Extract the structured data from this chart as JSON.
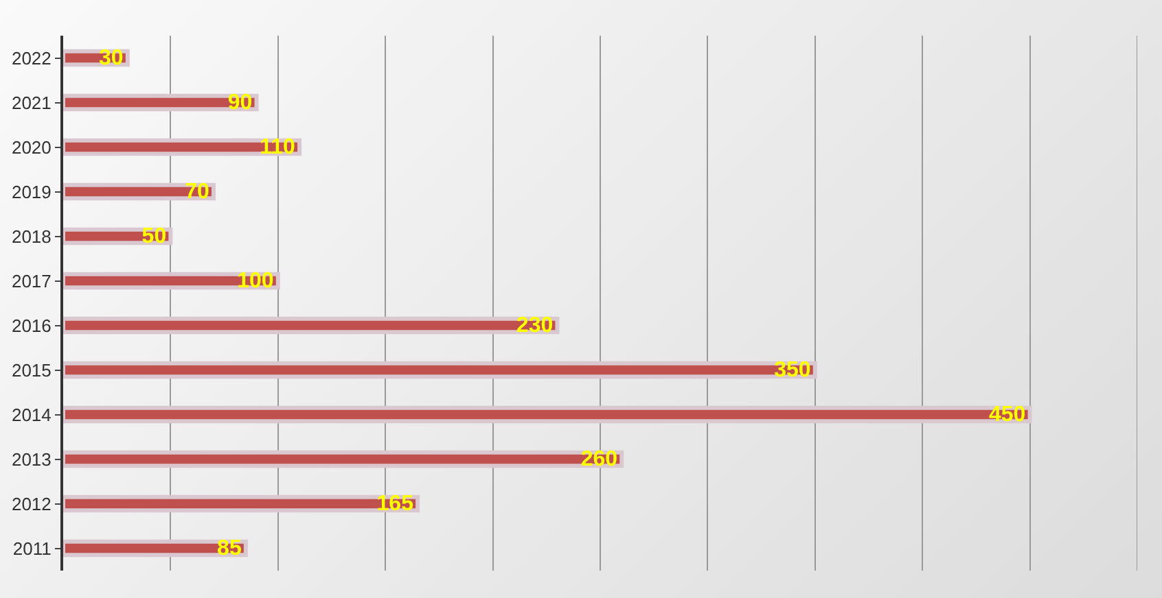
{
  "chart_data": {
    "type": "bar",
    "orientation": "horizontal",
    "categories": [
      "2022",
      "2021",
      "2020",
      "2019",
      "2018",
      "2017",
      "2016",
      "2015",
      "2014",
      "2013",
      "2012",
      "2011"
    ],
    "values": [
      30,
      90,
      110,
      70,
      50,
      100,
      230,
      350,
      450,
      260,
      165,
      85
    ],
    "color": "#c0504d",
    "xlim": [
      0,
      500
    ],
    "xticks": [
      {
        "value": 0,
        "label": null
      },
      {
        "value": 50,
        "label": null
      },
      {
        "value": 100,
        "label": null
      },
      {
        "value": 150,
        "label": null
      },
      {
        "value": 200,
        "label": null
      },
      {
        "value": 250,
        "label": null
      },
      {
        "value": 300,
        "label": null
      },
      {
        "value": 350,
        "label": null
      },
      {
        "value": 400,
        "label": null
      },
      {
        "value": 450,
        "label": null
      },
      {
        "value": 500,
        "label": null
      }
    ],
    "tick_labels": "y",
    "grid": "x",
    "data_labels": true,
    "legend": false
  }
}
